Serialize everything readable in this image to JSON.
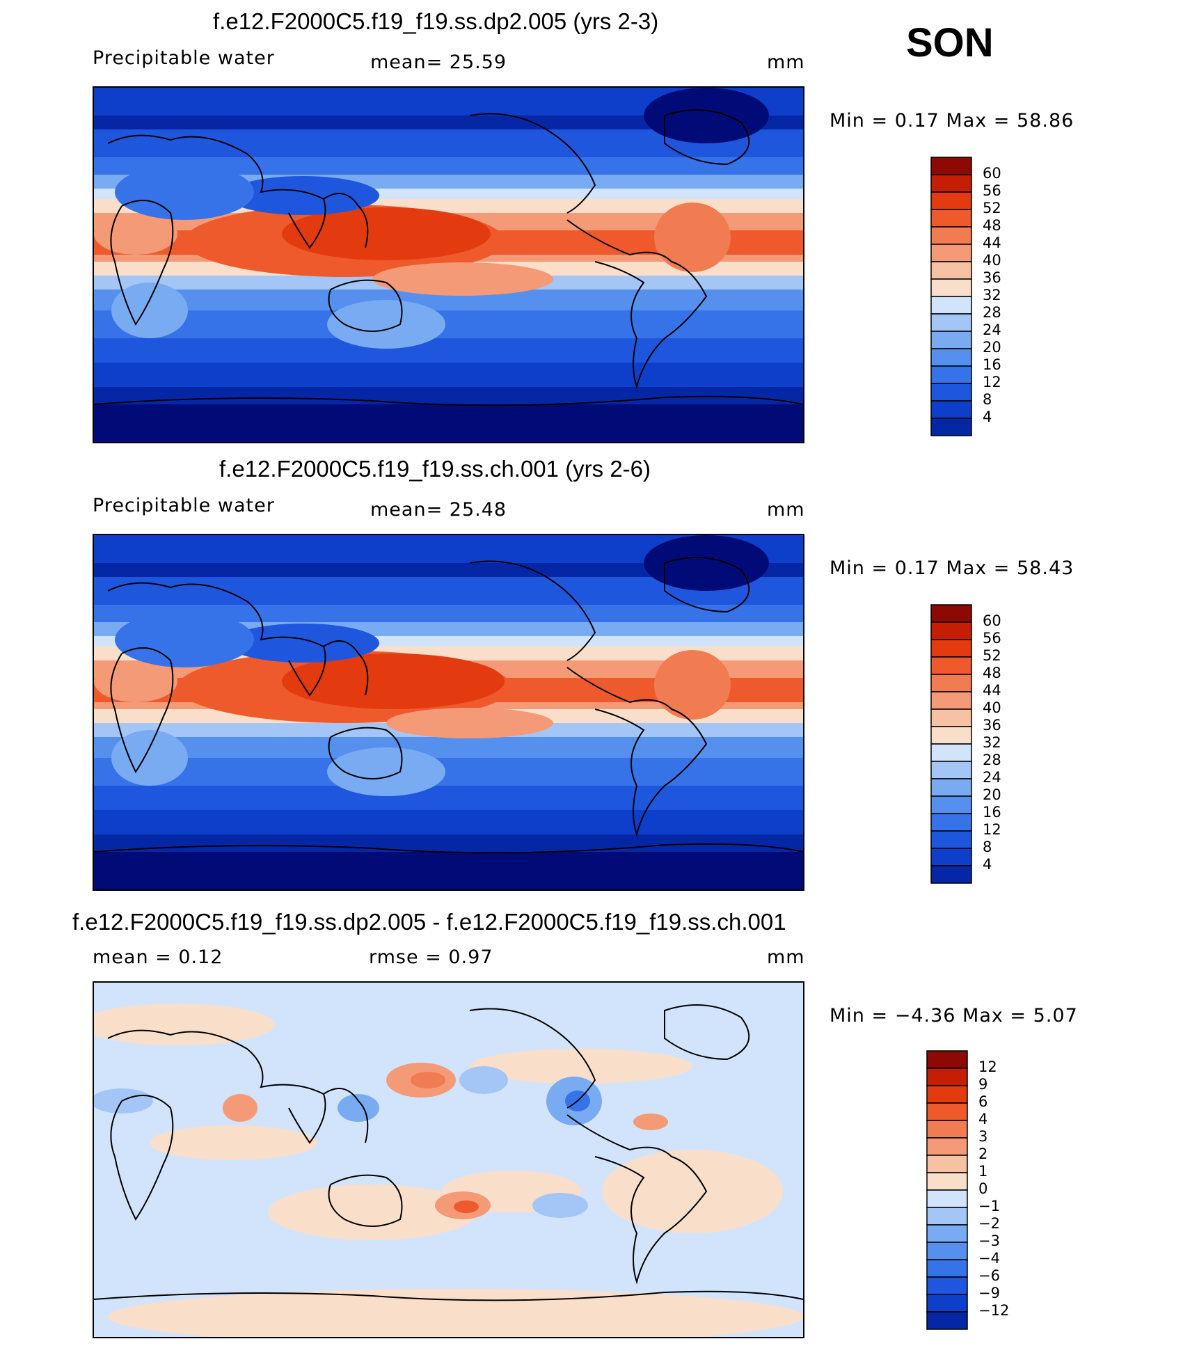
{
  "season": "SON",
  "palette_warm": [
    "#f9dfca",
    "#f7c2a4",
    "#f49a76",
    "#f27c51",
    "#ee5a2c",
    "#e43a10",
    "#c61e05",
    "#8c0a03"
  ],
  "palette_cool": [
    "#000b78",
    "#0527a6",
    "#0d3fcb",
    "#1e57de",
    "#3773e8",
    "#5690ee",
    "#79abf3",
    "#a4c6f7",
    "#d2e4fb"
  ],
  "panels": [
    {
      "title": "f.e12.F2000C5.f19_f19.ss.dp2.005 (yrs 2-3)",
      "left_label": "Precipitable  water",
      "center_label": "mean=   25.59",
      "units": "mm",
      "minmax": "Min =    0.17  Max =   58.86",
      "colorbar_labels": [
        "60",
        "56",
        "52",
        "48",
        "44",
        "40",
        "36",
        "32",
        "28",
        "24",
        "20",
        "16",
        "12",
        "8",
        "4"
      ]
    },
    {
      "title": "f.e12.F2000C5.f19_f19.ss.ch.001 (yrs 2-6)",
      "left_label": "Precipitable  water",
      "center_label": "mean=   25.48",
      "units": "mm",
      "minmax": "Min =    0.17  Max =   58.43",
      "colorbar_labels": [
        "60",
        "56",
        "52",
        "48",
        "44",
        "40",
        "36",
        "32",
        "28",
        "24",
        "20",
        "16",
        "12",
        "8",
        "4"
      ]
    },
    {
      "title": "f.e12.F2000C5.f19_f19.ss.dp2.005 - f.e12.F2000C5.f19_f19.ss.ch.001",
      "left_label": "mean =     0.12",
      "center_label": "rmse =     0.97",
      "units": "mm",
      "minmax": "Min =   −4.36  Max =     5.07",
      "colorbar_labels": [
        "12",
        "9",
        "6",
        "4",
        "3",
        "2",
        "1",
        "0",
        "−1",
        "−2",
        "−3",
        "−4",
        "−6",
        "−9",
        "−12"
      ]
    }
  ]
}
